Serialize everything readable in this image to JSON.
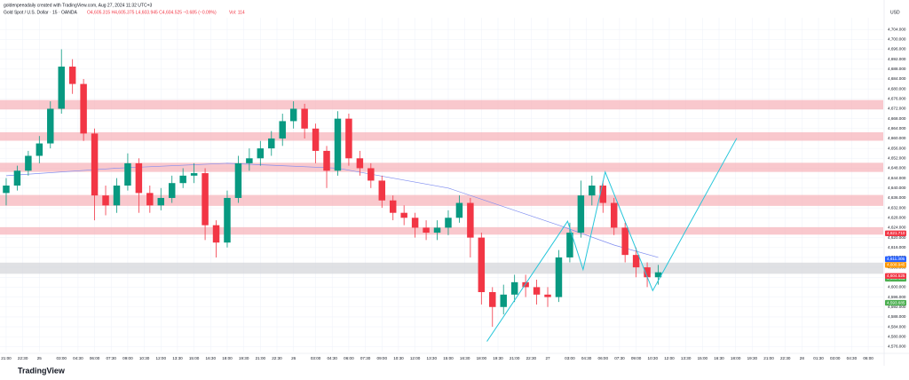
{
  "chart_data": {
    "type": "candlestick",
    "header": "goldenpeeadaily created with TradingView.com, Aug 27, 2024 11:32 UTC+3",
    "title": "Gold Spot / U.S. Dollar · 15 · OANDA",
    "ohlc_text": "O4,605.315 H4,605.375 L4,603.945 C4,604.525 −0.685 (−0.09%)",
    "volume_text": "Vol: 114",
    "currency": "USD",
    "logo": "TradingView",
    "up_color": "#089981",
    "down_color": "#f23645",
    "x": [
      0,
      1,
      2,
      3,
      4,
      5,
      6,
      7,
      8,
      9,
      10,
      11,
      12,
      13,
      14,
      15,
      16,
      17,
      18,
      19,
      20,
      21,
      22,
      23,
      24,
      25,
      26,
      27,
      28,
      29,
      30,
      31,
      32,
      33,
      34,
      35,
      36,
      37,
      38,
      39,
      40,
      41,
      42,
      43,
      44,
      45,
      46,
      47,
      48,
      49,
      50,
      51,
      52,
      53,
      54,
      55,
      56,
      57,
      58,
      59
    ],
    "open": [
      4638,
      4641,
      4647,
      4653,
      4658,
      4672,
      4689,
      4682,
      4662,
      4637,
      4633,
      4641,
      4650,
      4638,
      4633,
      4636,
      4642,
      4645,
      4646,
      4625,
      4618,
      4636,
      4650,
      4652,
      4656,
      4660,
      4667,
      4672,
      4664,
      4655,
      4647,
      4668,
      4652,
      4648,
      4643,
      4635,
      4630,
      4628,
      4624,
      4622,
      4624,
      4628,
      4634,
      4620,
      4598,
      4592,
      4597,
      4602,
      4600,
      4597,
      4596,
      4612,
      4622,
      4637,
      4641,
      4634,
      4624,
      4613,
      4608,
      4604
    ],
    "high": [
      4644,
      4649,
      4655,
      4661,
      4675,
      4696,
      4692,
      4684,
      4664,
      4641,
      4644,
      4654,
      4652,
      4641,
      4640,
      4645,
      4648,
      4650,
      4648,
      4627,
      4639,
      4653,
      4656,
      4659,
      4663,
      4670,
      4675,
      4674,
      4666,
      4657,
      4671,
      4670,
      4655,
      4650,
      4645,
      4637,
      4633,
      4630,
      4627,
      4627,
      4631,
      4637,
      4636,
      4622,
      4600,
      4601,
      4605,
      4605,
      4603,
      4600,
      4615,
      4626,
      4643,
      4645,
      4643,
      4636,
      4626,
      4616,
      4610,
      4609
    ],
    "low": [
      4633,
      4639,
      4645,
      4650,
      4656,
      4670,
      4678,
      4659,
      4627,
      4629,
      4630,
      4639,
      4630,
      4630,
      4631,
      4634,
      4640,
      4642,
      4619,
      4612,
      4616,
      4634,
      4647,
      4649,
      4653,
      4657,
      4664,
      4660,
      4650,
      4640,
      4645,
      4649,
      4645,
      4640,
      4632,
      4627,
      4625,
      4620,
      4619,
      4619,
      4621,
      4626,
      4612,
      4593,
      4584,
      4589,
      4594,
      4596,
      4593,
      4592,
      4594,
      4610,
      4620,
      4633,
      4630,
      4621,
      4610,
      4604,
      4600,
      4601
    ],
    "close": [
      4641,
      4647,
      4653,
      4658,
      4672,
      4689,
      4682,
      4662,
      4637,
      4633,
      4641,
      4650,
      4638,
      4633,
      4636,
      4642,
      4645,
      4646,
      4625,
      4618,
      4636,
      4650,
      4652,
      4656,
      4660,
      4667,
      4672,
      4664,
      4655,
      4647,
      4668,
      4652,
      4648,
      4643,
      4635,
      4630,
      4628,
      4624,
      4622,
      4624,
      4628,
      4634,
      4620,
      4598,
      4592,
      4597,
      4602,
      4600,
      4597,
      4596,
      4612,
      4622,
      4637,
      4641,
      4634,
      4624,
      4613,
      4608,
      4604,
      4606
    ],
    "moving_average": {
      "color": "#7e8cf0",
      "x": [
        0,
        10,
        20,
        30,
        40,
        50,
        55,
        59
      ],
      "values": [
        4645,
        4648,
        4650,
        4648,
        4640,
        4625,
        4617,
        4612
      ]
    },
    "zones": [
      {
        "from": 4671.7,
        "to": 4675.5,
        "color": "#f7b6bc"
      },
      {
        "from": 4659.1,
        "to": 4662.5,
        "color": "#f7b6bc"
      },
      {
        "from": 4646.5,
        "to": 4650.2,
        "color": "#f7b6bc"
      },
      {
        "from": 4632.8,
        "to": 4637.2,
        "color": "#f7b6bc"
      },
      {
        "from": 4621.2,
        "to": 4624.2,
        "color": "#f7b6bc"
      },
      {
        "from": 4605.4,
        "to": 4609.9,
        "color": "#d6d7db"
      }
    ],
    "drawing": {
      "color": "#26c6da",
      "x": [
        43.5,
        50.8,
        52.2,
        54.2,
        58.5,
        66.1
      ],
      "values": [
        4578.1,
        4626.6,
        4607.1,
        4646.5,
        4598.6,
        4660.1
      ]
    },
    "price_tags": [
      {
        "value": 4621.71,
        "label": "4,621.710",
        "color": "#f23645"
      },
      {
        "value": 4611.305,
        "label": "4,611.305",
        "color": "#2962ff"
      },
      {
        "value": 4608.945,
        "label": "4,608.945",
        "color": "#ff9800"
      },
      {
        "value": 4603.405,
        "label": "4,603.405",
        "color": "#4caf50"
      },
      {
        "value": 4604.525,
        "label": "4,604.525",
        "color": "#f23645"
      },
      {
        "value": 4593.685,
        "label": "4,593.685",
        "color": "#4caf50"
      }
    ],
    "symbol_tag": "XAUUSD",
    "xlim": [
      -0.56,
      79.36
    ],
    "ylim": [
      4574,
      4708
    ],
    "xticks": [
      {
        "value": 0,
        "label": "21:00"
      },
      {
        "value": 1.5,
        "label": "22:30"
      },
      {
        "value": 3,
        "label": "25"
      },
      {
        "value": 5,
        "label": "03:00"
      },
      {
        "value": 6.5,
        "label": "04:30"
      },
      {
        "value": 8,
        "label": "06:00"
      },
      {
        "value": 9.5,
        "label": "07:30"
      },
      {
        "value": 11,
        "label": "09:00"
      },
      {
        "value": 12.5,
        "label": "10:30"
      },
      {
        "value": 14,
        "label": "12:00"
      },
      {
        "value": 15.5,
        "label": "13:30"
      },
      {
        "value": 17,
        "label": "15:00"
      },
      {
        "value": 18.5,
        "label": "16:30"
      },
      {
        "value": 20,
        "label": "18:00"
      },
      {
        "value": 21.5,
        "label": "19:30"
      },
      {
        "value": 23,
        "label": "21:00"
      },
      {
        "value": 24.5,
        "label": "22:30"
      },
      {
        "value": 26,
        "label": "26"
      },
      {
        "value": 28,
        "label": "03:00"
      },
      {
        "value": 29.5,
        "label": "04:30"
      },
      {
        "value": 31,
        "label": "06:00"
      },
      {
        "value": 32.5,
        "label": "07:30"
      },
      {
        "value": 34,
        "label": "09:00"
      },
      {
        "value": 35.5,
        "label": "10:30"
      },
      {
        "value": 37,
        "label": "12:00"
      },
      {
        "value": 38.5,
        "label": "13:30"
      },
      {
        "value": 40,
        "label": "15:00"
      },
      {
        "value": 41.5,
        "label": "16:30"
      },
      {
        "value": 43,
        "label": "18:00"
      },
      {
        "value": 44.5,
        "label": "19:30"
      },
      {
        "value": 46,
        "label": "21:00"
      },
      {
        "value": 47.5,
        "label": "22:30"
      },
      {
        "value": 49,
        "label": "27"
      },
      {
        "value": 51,
        "label": "03:00"
      },
      {
        "value": 52.5,
        "label": "04:30"
      },
      {
        "value": 54,
        "label": "06:00"
      },
      {
        "value": 55.5,
        "label": "07:30"
      },
      {
        "value": 57,
        "label": "09:00"
      },
      {
        "value": 58.5,
        "label": "10:30"
      },
      {
        "value": 60,
        "label": "12:00"
      },
      {
        "value": 61.5,
        "label": "13:30"
      },
      {
        "value": 63,
        "label": "15:00"
      },
      {
        "value": 64.5,
        "label": "16:30"
      },
      {
        "value": 66,
        "label": "18:00"
      },
      {
        "value": 67.5,
        "label": "19:30"
      },
      {
        "value": 69,
        "label": "21:00"
      },
      {
        "value": 70.5,
        "label": "22:30"
      },
      {
        "value": 72,
        "label": "28"
      },
      {
        "value": 73.5,
        "label": "01:30"
      },
      {
        "value": 75,
        "label": "03:00"
      },
      {
        "value": 76.5,
        "label": "04:30"
      },
      {
        "value": 78,
        "label": "06:00"
      }
    ],
    "yticks": [
      {
        "value": 4704,
        "label": "4,704.000"
      },
      {
        "value": 4700,
        "label": "4,700.000"
      },
      {
        "value": 4696,
        "label": "4,696.000"
      },
      {
        "value": 4692,
        "label": "4,692.000"
      },
      {
        "value": 4688,
        "label": "4,688.000"
      },
      {
        "value": 4684,
        "label": "4,684.000"
      },
      {
        "value": 4680,
        "label": "4,680.000"
      },
      {
        "value": 4676,
        "label": "4,676.000"
      },
      {
        "value": 4672,
        "label": "4,672.000"
      },
      {
        "value": 4668,
        "label": "4,668.000"
      },
      {
        "value": 4664,
        "label": "4,664.000"
      },
      {
        "value": 4660,
        "label": "4,660.000"
      },
      {
        "value": 4656,
        "label": "4,656.000"
      },
      {
        "value": 4652,
        "label": "4,652.000"
      },
      {
        "value": 4648,
        "label": "4,648.000"
      },
      {
        "value": 4644,
        "label": "4,644.000"
      },
      {
        "value": 4640,
        "label": "4,640.000"
      },
      {
        "value": 4636,
        "label": "4,636.000"
      },
      {
        "value": 4632,
        "label": "4,632.000"
      },
      {
        "value": 4628,
        "label": "4,628.000"
      },
      {
        "value": 4624,
        "label": "4,624.000"
      },
      {
        "value": 4620,
        "label": "4,620.000"
      },
      {
        "value": 4616,
        "label": "4,616.000"
      },
      {
        "value": 4612,
        "label": "4,612.000"
      },
      {
        "value": 4608,
        "label": "4,608.000"
      },
      {
        "value": 4604,
        "label": "4,604.000"
      },
      {
        "value": 4600,
        "label": "4,600.000"
      },
      {
        "value": 4596,
        "label": "4,596.000"
      },
      {
        "value": 4592,
        "label": "4,592.000"
      },
      {
        "value": 4588,
        "label": "4,588.000"
      },
      {
        "value": 4584,
        "label": "4,584.000"
      },
      {
        "value": 4580,
        "label": "4,580.000"
      },
      {
        "value": 4576,
        "label": "4,576.000"
      }
    ],
    "grid": true
  }
}
